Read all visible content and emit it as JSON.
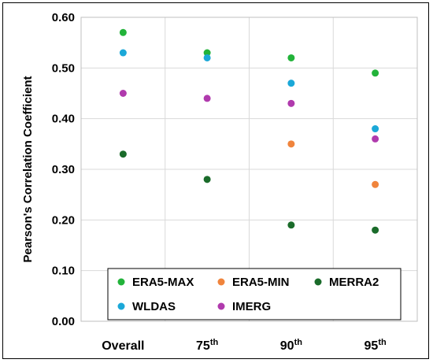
{
  "chart_data": {
    "type": "scatter",
    "title": "",
    "xlabel": "",
    "ylabel": "Pearson's Correlation Coefficient",
    "categories": [
      {
        "base": "Overall",
        "sup": ""
      },
      {
        "base": "75",
        "sup": "th"
      },
      {
        "base": "90",
        "sup": "th"
      },
      {
        "base": "95",
        "sup": "th"
      }
    ],
    "ylim": [
      0,
      0.6
    ],
    "yticks": [
      "0.00",
      "0.10",
      "0.20",
      "0.30",
      "0.40",
      "0.50",
      "0.60"
    ],
    "ytick_values": [
      0,
      0.1,
      0.2,
      0.3,
      0.4,
      0.5,
      0.6
    ],
    "grid": true,
    "legend_position": "bottom-inside",
    "series": [
      {
        "name": "ERA5-MAX",
        "color": "#22b33a",
        "values": [
          0.57,
          0.53,
          0.52,
          0.49
        ]
      },
      {
        "name": "ERA5-MIN",
        "color": "#f0843c",
        "values": [
          null,
          null,
          0.35,
          0.27
        ]
      },
      {
        "name": "MERRA2",
        "color": "#1a6b2a",
        "values": [
          0.33,
          0.28,
          0.19,
          0.18
        ]
      },
      {
        "name": "WLDAS",
        "color": "#1ba8d8",
        "values": [
          0.53,
          0.52,
          0.47,
          0.38
        ]
      },
      {
        "name": "IMERG",
        "color": "#b03aad",
        "values": [
          0.45,
          0.44,
          0.43,
          0.36
        ]
      }
    ]
  }
}
